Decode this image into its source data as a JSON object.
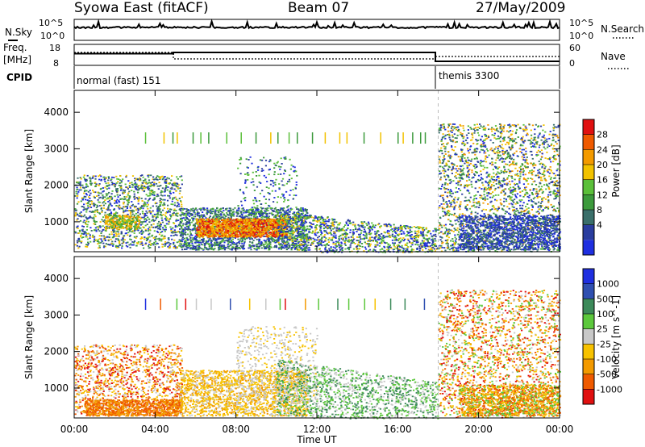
{
  "header": {
    "station": "Syowa East (fitACF)",
    "beam": "Beam 07",
    "date": "27/May/2009"
  },
  "noise_panel": {
    "left_label": "N.Sky",
    "right_label": "N.Search",
    "left_ticks": [
      "10^5",
      "10^0"
    ],
    "right_ticks": [
      "10^5",
      "10^0"
    ]
  },
  "freq_panel": {
    "left_label_1": "Freq.",
    "left_label_2": "[MHz]",
    "right_label": "Nave",
    "left_ticks": [
      "18",
      "8"
    ],
    "right_ticks": [
      "60",
      "0"
    ]
  },
  "cpid_panel": {
    "label": "CPID",
    "mode1": "normal (fast) 151",
    "mode2": "themis 3300"
  },
  "colors": {
    "power": [
      "#1f2fe0",
      "#2a3d9e",
      "#3a6f6a",
      "#3c9a3c",
      "#5bbf3a",
      "#f2c200",
      "#f39a00",
      "#ef5a00",
      "#e01010"
    ],
    "velocity": [
      "#e01010",
      "#ef5a00",
      "#f39a00",
      "#f7c200",
      "#c8c8c8",
      "#5cc83c",
      "#3c8a5a",
      "#2f4fb0",
      "#1f2fe0"
    ]
  },
  "chart_data": [
    {
      "type": "heatmap",
      "name": "power",
      "ylabel": "Slant Range [km]",
      "colorbar_label": "Power [dB]",
      "colorbar_ticks": [
        "28",
        "24",
        "20",
        "16",
        "12",
        "8",
        "4"
      ],
      "y_ticks": [
        "4000",
        "3000",
        "2000",
        "1000"
      ],
      "ylim": [
        180,
        4600
      ],
      "xlim_hours": [
        0,
        24
      ]
    },
    {
      "type": "heatmap",
      "name": "velocity",
      "ylabel": "Slant Range [km]",
      "colorbar_label": "Velocity [m s^-1]",
      "colorbar_ticks": [
        "1000",
        "500",
        "100",
        "25",
        "-25",
        "-100",
        "-500",
        "-1000"
      ],
      "y_ticks": [
        "4000",
        "3000",
        "2000",
        "1000"
      ],
      "ylim": [
        180,
        4600
      ],
      "xlim_hours": [
        0,
        24
      ]
    }
  ],
  "x_axis": {
    "ticks": [
      "00:00",
      "04:00",
      "08:00",
      "12:00",
      "16:00",
      "20:00",
      "00:00"
    ],
    "label": "Time UT"
  }
}
